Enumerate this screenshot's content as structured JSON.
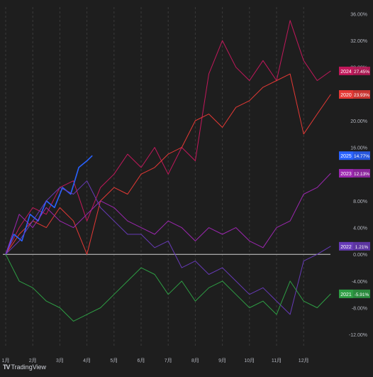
{
  "brand": {
    "name": "TradingView",
    "mark": "TV"
  },
  "colors": {
    "background": "#1e1e1e",
    "zero_line": "#d0d0d0",
    "axis_text": "#b2b5be"
  },
  "chart_data": {
    "type": "line",
    "title": "",
    "xlabel": "",
    "ylabel": "",
    "ylim": [
      -14,
      37
    ],
    "x_ticks": [
      "1月",
      "2月",
      "3月",
      "4月",
      "5月",
      "6月",
      "7月",
      "8月",
      "9月",
      "10月",
      "11月",
      "12月"
    ],
    "y_ticks": [
      36,
      32,
      28,
      24,
      20,
      16,
      12,
      8,
      4,
      0,
      -4,
      -8,
      -12
    ],
    "y_tick_labels": [
      "36.00%",
      "32.00%",
      "28.00%",
      "24.00%",
      "20.00%",
      "16.00%",
      "12.00%",
      "8.00%",
      "4.00%",
      "0.00%",
      "-4.00%",
      "-8.00%",
      "-12.00%"
    ],
    "grid": true,
    "series": [
      {
        "name": "2024",
        "color": "#c2185b",
        "label_value": "27.45%",
        "x": [
          0,
          0.5,
          1,
          1.5,
          2,
          2.5,
          3,
          3.5,
          4,
          4.5,
          5,
          5.5,
          6,
          6.5,
          7,
          7.5,
          8,
          8.5,
          9,
          9.5,
          10,
          10.5,
          11,
          11.5,
          12
        ],
        "y": [
          0,
          4,
          7,
          6,
          10,
          11,
          5,
          10,
          12,
          15,
          13,
          16,
          12,
          16,
          14,
          27,
          32,
          28,
          26,
          29,
          26,
          35,
          29,
          26,
          27.45
        ]
      },
      {
        "name": "2020",
        "color": "#e53935",
        "label_value": "23.93%",
        "x": [
          0,
          0.5,
          1,
          1.5,
          2,
          2.5,
          3,
          3.5,
          4,
          4.5,
          5,
          5.5,
          6,
          6.5,
          7,
          7.5,
          8,
          8.5,
          9,
          9.5,
          10,
          10.5,
          11,
          11.5,
          12
        ],
        "y": [
          0,
          3,
          5,
          4,
          7,
          5,
          0,
          8,
          10,
          9,
          12,
          13,
          15,
          16,
          20,
          21,
          19,
          22,
          23,
          25,
          26,
          27,
          18,
          21,
          23.93
        ]
      },
      {
        "name": "2025",
        "color": "#2962ff",
        "label_value": "14.77%",
        "x": [
          0,
          0.3,
          0.6,
          0.9,
          1.2,
          1.5,
          1.8,
          2.1,
          2.4,
          2.7,
          3.0,
          3.2
        ],
        "y": [
          0,
          3,
          2,
          6,
          5,
          8,
          7,
          10,
          9,
          13,
          14,
          14.77
        ]
      },
      {
        "name": "2023",
        "color": "#9c27b0",
        "label_value": "12.13%",
        "x": [
          0,
          0.5,
          1,
          1.5,
          2,
          2.5,
          3,
          3.5,
          4,
          4.5,
          5,
          5.5,
          6,
          6.5,
          7,
          7.5,
          8,
          8.5,
          9,
          9.5,
          10,
          10.5,
          11,
          11.5,
          12
        ],
        "y": [
          0,
          6,
          4,
          7,
          5,
          4,
          6,
          8,
          7,
          5,
          4,
          3,
          5,
          4,
          2,
          4,
          3,
          4,
          2,
          1,
          4,
          5,
          9,
          10,
          12.13
        ]
      },
      {
        "name": "2022",
        "color": "#673ab7",
        "label_value": "1.21%",
        "x": [
          0,
          0.5,
          1,
          1.5,
          2,
          2.5,
          3,
          3.5,
          4,
          4.5,
          5,
          5.5,
          6,
          6.5,
          7,
          7.5,
          8,
          8.5,
          9,
          9.5,
          10,
          10.5,
          11,
          11.5,
          12
        ],
        "y": [
          0,
          2,
          5,
          8,
          10,
          9,
          11,
          7,
          5,
          3,
          3,
          1,
          2,
          -2,
          -1,
          -3,
          -2,
          -4,
          -6,
          -5,
          -7,
          -9,
          -1,
          0,
          1.21
        ]
      },
      {
        "name": "2021",
        "color": "#2e9e44",
        "label_value": "-5.91%",
        "x": [
          0,
          0.5,
          1,
          1.5,
          2,
          2.5,
          3,
          3.5,
          4,
          4.5,
          5,
          5.5,
          6,
          6.5,
          7,
          7.5,
          8,
          8.5,
          9,
          9.5,
          10,
          10.5,
          11,
          11.5,
          12
        ],
        "y": [
          0,
          -4,
          -5,
          -7,
          -8,
          -10,
          -9,
          -8,
          -6,
          -4,
          -2,
          -3,
          -6,
          -4,
          -7,
          -5,
          -4,
          -6,
          -8,
          -7,
          -9,
          -4,
          -7,
          -8,
          -5.91
        ]
      }
    ]
  }
}
